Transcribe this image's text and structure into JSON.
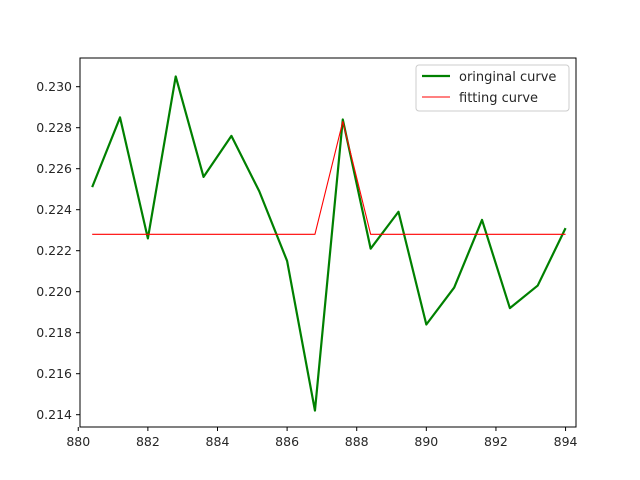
{
  "chart_data": {
    "type": "line",
    "title": "",
    "xlabel": "",
    "ylabel": "",
    "xlim": [
      880.05,
      894.3
    ],
    "ylim": [
      0.2134,
      0.2314
    ],
    "xticks": [
      880,
      882,
      884,
      886,
      888,
      890,
      892,
      894
    ],
    "yticks": [
      0.214,
      0.216,
      0.218,
      0.22,
      0.222,
      0.224,
      0.226,
      0.228,
      0.23
    ],
    "grid": false,
    "legend_position": "top-right",
    "series": [
      {
        "name": "oringinal curve",
        "color": "#008000",
        "x": [
          880.4,
          881.2,
          882.0,
          882.8,
          883.6,
          884.4,
          885.2,
          886.0,
          886.8,
          887.6,
          888.4,
          889.2,
          890.0,
          890.8,
          891.6,
          892.4,
          893.2,
          894.0
        ],
        "y": [
          0.2251,
          0.2285,
          0.2226,
          0.2305,
          0.2256,
          0.2276,
          0.2249,
          0.2215,
          0.2142,
          0.2284,
          0.2221,
          0.2239,
          0.2184,
          0.2202,
          0.2235,
          0.2192,
          0.2203,
          0.2231
        ]
      },
      {
        "name": "fitting curve",
        "color": "#ff0000",
        "x": [
          880.4,
          881.2,
          882.0,
          882.8,
          883.6,
          884.4,
          885.2,
          886.0,
          886.8,
          887.6,
          888.4,
          889.2,
          890.0,
          890.8,
          891.6,
          892.4,
          893.2,
          894.0
        ],
        "y": [
          0.2228,
          0.2228,
          0.2228,
          0.2228,
          0.2228,
          0.2228,
          0.2228,
          0.2228,
          0.2228,
          0.2283,
          0.2228,
          0.2228,
          0.2228,
          0.2228,
          0.2228,
          0.2228,
          0.2228,
          0.2228
        ]
      }
    ]
  }
}
